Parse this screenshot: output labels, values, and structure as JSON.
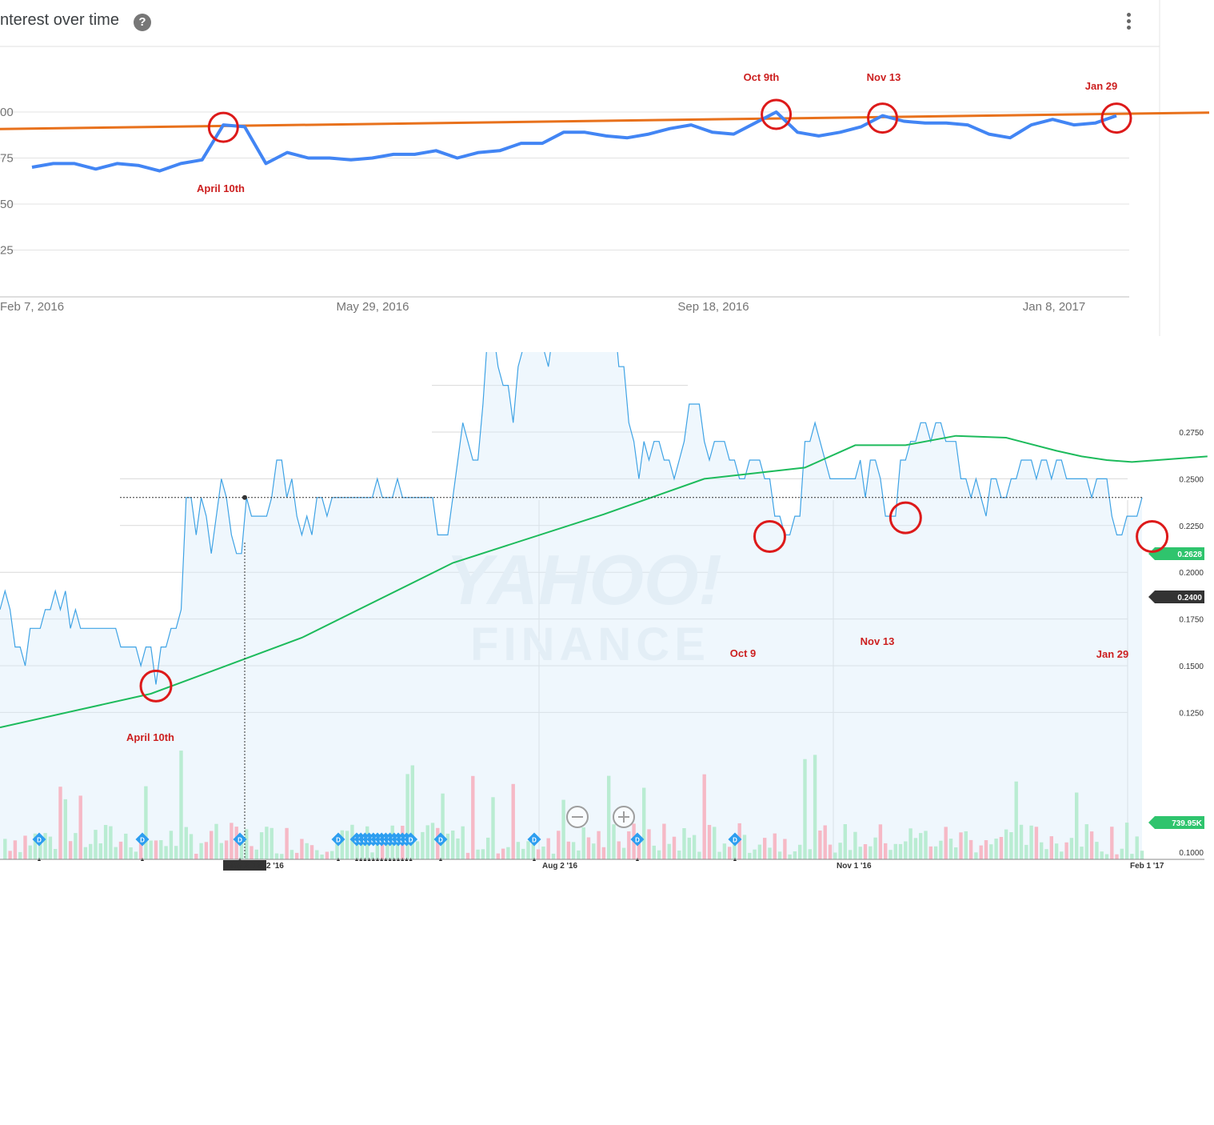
{
  "chart_data": [
    {
      "type": "line",
      "title": "nterest over time",
      "x_ticks": [
        "Feb 7, 2016",
        "May 29, 2016",
        "Sep 18, 2016",
        "Jan 8, 2017"
      ],
      "y_ticks": [
        "00",
        "75",
        "50",
        "25"
      ],
      "ylim": [
        0,
        100
      ],
      "xlim": [
        "2016-02-07",
        "2017-01-29"
      ],
      "grid": true,
      "series": [
        {
          "color": "#4285f4",
          "x": [
            "2016-02-07",
            "2016-02-14",
            "2016-02-21",
            "2016-02-28",
            "2016-03-06",
            "2016-03-13",
            "2016-03-20",
            "2016-03-27",
            "2016-04-03",
            "2016-04-10",
            "2016-04-17",
            "2016-04-24",
            "2016-05-01",
            "2016-05-08",
            "2016-05-15",
            "2016-05-22",
            "2016-05-29",
            "2016-06-05",
            "2016-06-12",
            "2016-06-19",
            "2016-06-26",
            "2016-07-03",
            "2016-07-10",
            "2016-07-17",
            "2016-07-24",
            "2016-07-31",
            "2016-08-07",
            "2016-08-14",
            "2016-08-21",
            "2016-08-28",
            "2016-09-04",
            "2016-09-11",
            "2016-09-18",
            "2016-09-25",
            "2016-10-02",
            "2016-10-09",
            "2016-10-16",
            "2016-10-23",
            "2016-10-30",
            "2016-11-06",
            "2016-11-13",
            "2016-11-20",
            "2016-11-27",
            "2016-12-04",
            "2016-12-11",
            "2016-12-18",
            "2016-12-25",
            "2017-01-01",
            "2017-01-08",
            "2017-01-15",
            "2017-01-22",
            "2017-01-29"
          ],
          "values": [
            70,
            72,
            72,
            69,
            72,
            71,
            68,
            72,
            74,
            93,
            92,
            72,
            78,
            75,
            75,
            74,
            75,
            77,
            77,
            79,
            75,
            78,
            79,
            83,
            83,
            89,
            89,
            87,
            86,
            88,
            91,
            93,
            89,
            88,
            94,
            100,
            89,
            87,
            89,
            92,
            98,
            95,
            94,
            94,
            93,
            88,
            86,
            93,
            96,
            93,
            94,
            98
          ]
        },
        {
          "color": "#e8711c",
          "x": [
            "2016-02-07",
            "2017-01-29"
          ],
          "values": [
            91,
            99
          ]
        }
      ],
      "annotations": [
        {
          "label": "April 10th",
          "x": "2016-04-10",
          "y": 93
        },
        {
          "label": "Oct 9th",
          "x": "2016-10-09",
          "y": 100
        },
        {
          "label": "Nov 13",
          "x": "2016-11-13",
          "y": 98
        },
        {
          "label": "Jan 29",
          "x": "2017-01-29",
          "y": 98
        }
      ]
    },
    {
      "type": "area",
      "watermark": [
        "YAHOO!",
        "FINANCE"
      ],
      "x_ticks": [
        "May 2 '16",
        "2 '16",
        "Aug 2 '16",
        "Nov 1 '16",
        "Feb 1 '17"
      ],
      "y_ticks": [
        "0.2750",
        "0.2500",
        "0.2250",
        "0.2000",
        "0.1750",
        "0.1500",
        "0.1250",
        "0.1000"
      ],
      "ylim": [
        0.1,
        0.28
      ],
      "xlim": [
        0,
        240
      ],
      "price_series": {
        "color": "#3fa3e5",
        "values": [
          0.18,
          0.19,
          0.18,
          0.16,
          0.16,
          0.15,
          0.17,
          0.17,
          0.17,
          0.18,
          0.18,
          0.19,
          0.18,
          0.19,
          0.17,
          0.18,
          0.17,
          0.17,
          0.17,
          0.17,
          0.17,
          0.17,
          0.17,
          0.17,
          0.16,
          0.16,
          0.16,
          0.16,
          0.15,
          0.16,
          0.16,
          0.14,
          0.16,
          0.16,
          0.17,
          0.17,
          0.18,
          0.24,
          0.24,
          0.22,
          0.24,
          0.23,
          0.21,
          0.23,
          0.25,
          0.24,
          0.22,
          0.21,
          0.21,
          0.24,
          0.23,
          0.23,
          0.23,
          0.23,
          0.24,
          0.26,
          0.26,
          0.24,
          0.25,
          0.23,
          0.22,
          0.23,
          0.22,
          0.24,
          0.24,
          0.23,
          0.24,
          0.24,
          0.24,
          0.24,
          0.24,
          0.24,
          0.24,
          0.24,
          0.24,
          0.25,
          0.24,
          0.24,
          0.24,
          0.25,
          0.24,
          0.24,
          0.24,
          0.24,
          0.24,
          0.24,
          0.24,
          0.22,
          0.22,
          0.22,
          0.24,
          0.26,
          0.28,
          0.27,
          0.26,
          0.26,
          0.29,
          0.33,
          0.33,
          0.31,
          0.3,
          0.3,
          0.28,
          0.31,
          0.32,
          0.33,
          0.33,
          0.32,
          0.32,
          0.31,
          0.33,
          0.32,
          0.33,
          0.32,
          0.34,
          0.35,
          0.35,
          0.34,
          0.35,
          0.34,
          0.33,
          0.33,
          0.34,
          0.31,
          0.31,
          0.28,
          0.27,
          0.25,
          0.27,
          0.26,
          0.27,
          0.27,
          0.26,
          0.26,
          0.25,
          0.26,
          0.27,
          0.29,
          0.29,
          0.29,
          0.27,
          0.26,
          0.27,
          0.27,
          0.27,
          0.26,
          0.26,
          0.25,
          0.25,
          0.26,
          0.26,
          0.26,
          0.25,
          0.25,
          0.23,
          0.23,
          0.22,
          0.22,
          0.23,
          0.23,
          0.27,
          0.27,
          0.28,
          0.27,
          0.26,
          0.25,
          0.25,
          0.25,
          0.25,
          0.25,
          0.25,
          0.26,
          0.24,
          0.26,
          0.26,
          0.25,
          0.23,
          0.23,
          0.23,
          0.26,
          0.26,
          0.27,
          0.27,
          0.28,
          0.28,
          0.27,
          0.28,
          0.28,
          0.27,
          0.27,
          0.27,
          0.25,
          0.25,
          0.24,
          0.25,
          0.24,
          0.23,
          0.25,
          0.25,
          0.24,
          0.24,
          0.25,
          0.25,
          0.26,
          0.26,
          0.26,
          0.25,
          0.26,
          0.26,
          0.25,
          0.26,
          0.26,
          0.25,
          0.25,
          0.25,
          0.25,
          0.25,
          0.24,
          0.25,
          0.25,
          0.25,
          0.23,
          0.22,
          0.22,
          0.23,
          0.23,
          0.23,
          0.24
        ]
      },
      "moving_average": {
        "color": "#1dbb5c",
        "x": [
          0,
          30,
          60,
          90,
          120,
          140,
          160,
          170,
          180,
          190,
          200,
          210,
          215,
          220,
          225,
          240
        ],
        "values": [
          0.117,
          0.135,
          0.165,
          0.205,
          0.231,
          0.25,
          0.256,
          0.268,
          0.268,
          0.273,
          0.272,
          0.265,
          0.262,
          0.26,
          0.259,
          0.262
        ]
      },
      "current_price_label": "0.2400",
      "moving_average_label": "0.2628",
      "volume_label": "739.95K",
      "annotations": [
        {
          "label": "April 10th",
          "x": 31,
          "y": 0.14
        },
        {
          "label": "Oct 9",
          "x": 153,
          "y": 0.22
        },
        {
          "label": "Nov 13",
          "x": 180,
          "y": 0.23
        },
        {
          "label": "Jan 29",
          "x": 229,
          "y": 0.22
        }
      ]
    }
  ],
  "icons": {
    "help": "question-circle-icon",
    "menu": "more-vertical-icon",
    "zoom_out": "zoom-out-icon",
    "zoom_in": "zoom-in-icon",
    "dividend": "dividend-marker-icon"
  },
  "dividend_marker_label": "D"
}
